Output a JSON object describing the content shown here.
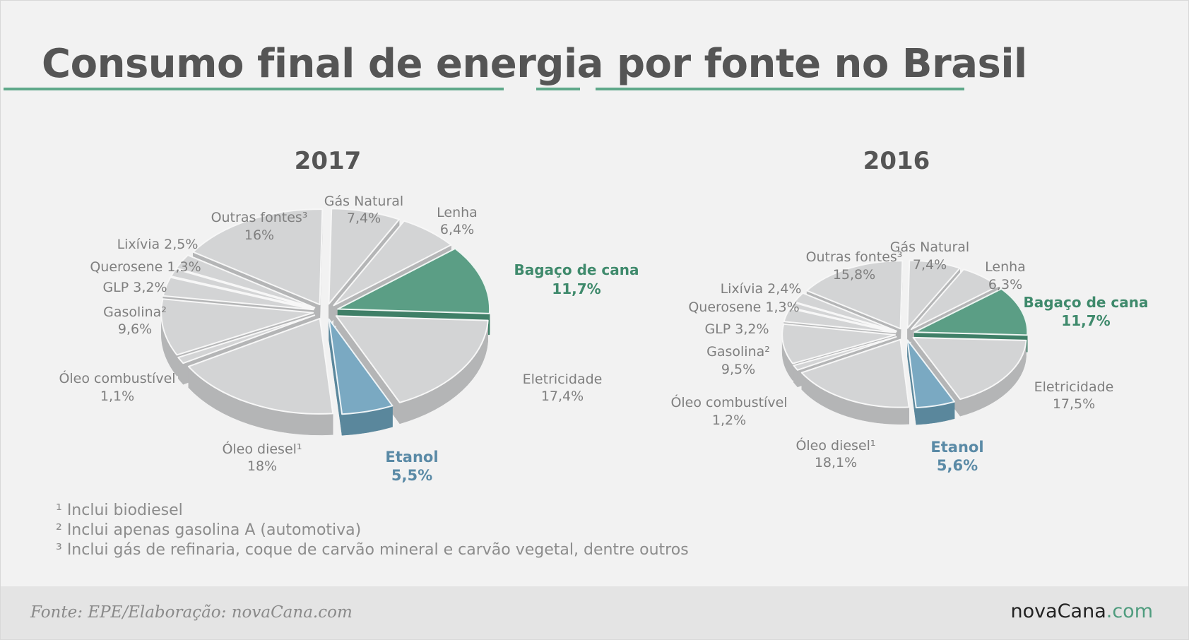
{
  "title": "Consumo final de energia por fonte no Brasil",
  "colors": {
    "accent": "#5fa88a",
    "green": "#4f9c7e",
    "blue": "#7aa9c2",
    "gray": "#d3d4d5"
  },
  "chart_data": [
    {
      "type": "pie",
      "title": "2017",
      "exploded": true,
      "slices": [
        {
          "name": "Gás Natural",
          "value": 7.4,
          "label_name": "Gás Natural",
          "label_value": "7,4%",
          "style": "gray"
        },
        {
          "name": "Lenha",
          "value": 6.4,
          "label_name": "Lenha",
          "label_value": "6,4%",
          "style": "gray"
        },
        {
          "name": "Bagaço de cana",
          "value": 11.7,
          "label_name": "Bagaço de cana",
          "label_value": "11,7%",
          "style": "green"
        },
        {
          "name": "Eletricidade",
          "value": 17.4,
          "label_name": "Eletricidade",
          "label_value": "17,4%",
          "style": "gray"
        },
        {
          "name": "Etanol",
          "value": 5.5,
          "label_name": "Etanol",
          "label_value": "5,5%",
          "style": "blue"
        },
        {
          "name": "Óleo diesel",
          "value": 18,
          "label_name": "Óleo diesel¹",
          "label_value": "18%",
          "style": "gray"
        },
        {
          "name": "Óleo combustível",
          "value": 1.1,
          "label_name": "Óleo combustível",
          "label_value": "1,1%",
          "style": "gray"
        },
        {
          "name": "Gasolina",
          "value": 9.6,
          "label_name": "Gasolina²",
          "label_value": "9,6%",
          "style": "gray"
        },
        {
          "name": "GLP",
          "value": 3.2,
          "label_name": "GLP 3,2%",
          "label_value": "",
          "style": "gray"
        },
        {
          "name": "Querosene",
          "value": 1.3,
          "label_name": "Querosene 1,3%",
          "label_value": "",
          "style": "gray"
        },
        {
          "name": "Lixívia",
          "value": 2.5,
          "label_name": "Lixívia 2,5%",
          "label_value": "",
          "style": "gray"
        },
        {
          "name": "Outras fontes",
          "value": 16,
          "label_name": "Outras fontes³",
          "label_value": "16%",
          "style": "gray"
        }
      ]
    },
    {
      "type": "pie",
      "title": "2016",
      "exploded": true,
      "slices": [
        {
          "name": "Gás Natural",
          "value": 7.4,
          "label_name": "Gás Natural",
          "label_value": "7,4%",
          "style": "gray"
        },
        {
          "name": "Lenha",
          "value": 6.3,
          "label_name": "Lenha",
          "label_value": "6,3%",
          "style": "gray"
        },
        {
          "name": "Bagaço de cana",
          "value": 11.7,
          "label_name": "Bagaço de cana",
          "label_value": "11,7%",
          "style": "green"
        },
        {
          "name": "Eletricidade",
          "value": 17.5,
          "label_name": "Eletricidade",
          "label_value": "17,5%",
          "style": "gray"
        },
        {
          "name": "Etanol",
          "value": 5.6,
          "label_name": "Etanol",
          "label_value": "5,6%",
          "style": "blue"
        },
        {
          "name": "Óleo diesel",
          "value": 18.1,
          "label_name": "Óleo diesel¹",
          "label_value": "18,1%",
          "style": "gray"
        },
        {
          "name": "Óleo combustível",
          "value": 1.2,
          "label_name": "Óleo combustível",
          "label_value": "1,2%",
          "style": "gray"
        },
        {
          "name": "Gasolina",
          "value": 9.5,
          "label_name": "Gasolina²",
          "label_value": "9,5%",
          "style": "gray"
        },
        {
          "name": "GLP",
          "value": 3.2,
          "label_name": "GLP 3,2%",
          "label_value": "",
          "style": "gray"
        },
        {
          "name": "Querosene",
          "value": 1.3,
          "label_name": "Querosene 1,3%",
          "label_value": "",
          "style": "gray"
        },
        {
          "name": "Lixívia",
          "value": 2.4,
          "label_name": "Lixívia 2,4%",
          "label_value": "",
          "style": "gray"
        },
        {
          "name": "Outras fontes",
          "value": 15.8,
          "label_name": "Outras fontes³",
          "label_value": "15,8%",
          "style": "gray"
        }
      ]
    }
  ],
  "footnotes": [
    "¹ Inclui biodiesel",
    "² Inclui apenas gasolina A (automotiva)",
    "³ Inclui gás de refinaria, coque de carvão mineral e carvão vegetal, dentre outros"
  ],
  "footer": {
    "source": "Fonte: EPE/Elaboração: novaCana.com",
    "brand_main": "novaCana",
    "brand_suffix": ".com"
  }
}
